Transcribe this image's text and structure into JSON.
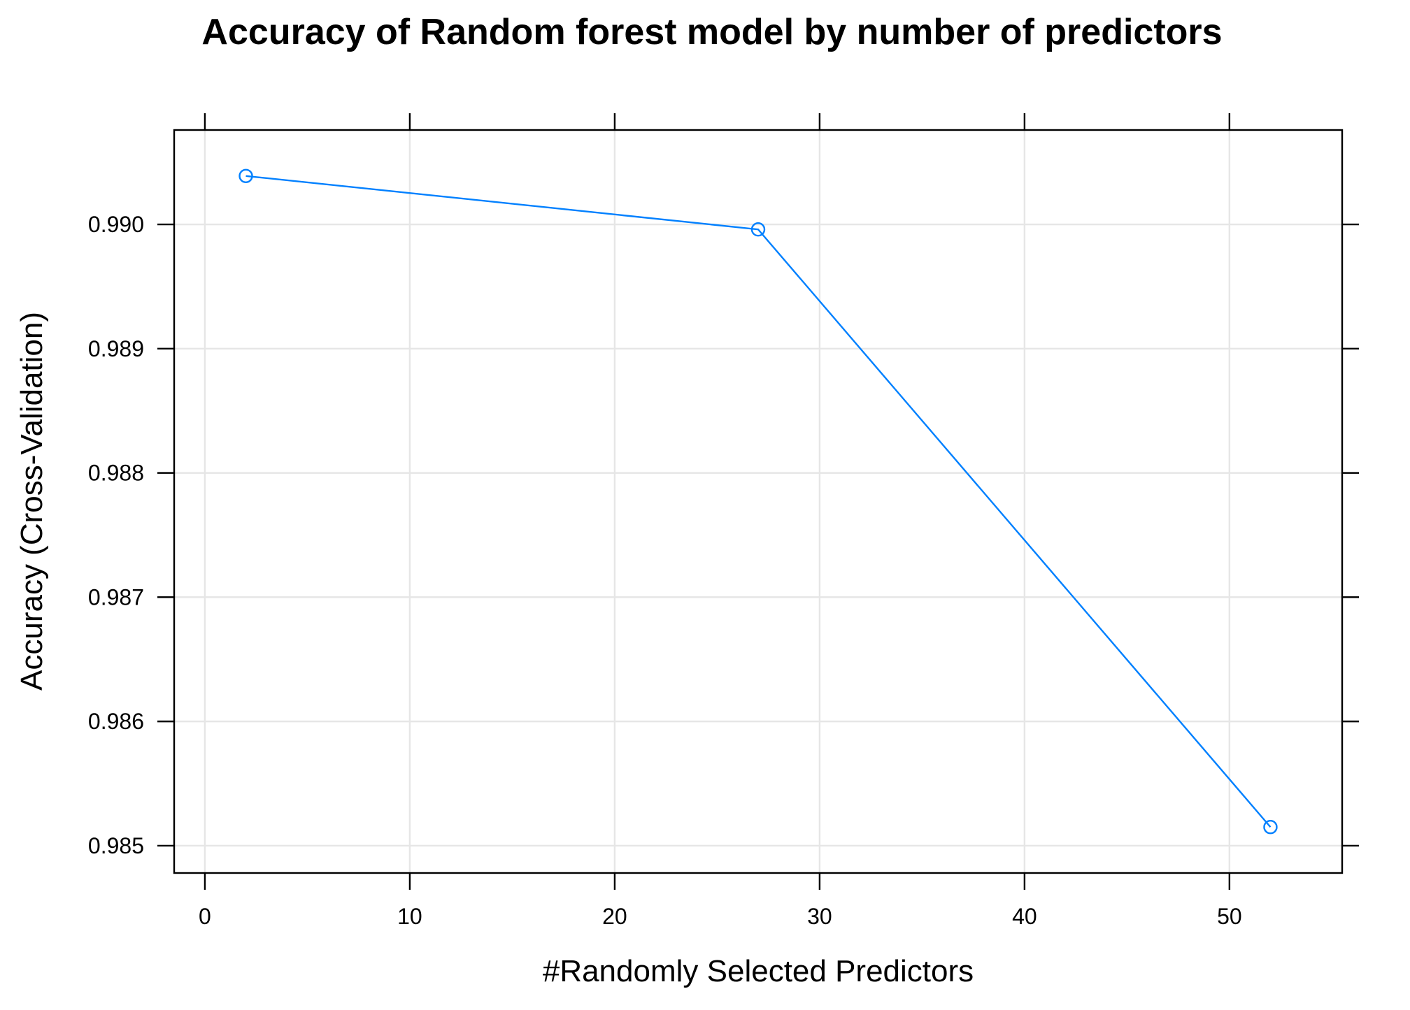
{
  "chart_data": {
    "type": "line",
    "title": "Accuracy of Random forest model by number of predictors",
    "xlabel": "#Randomly Selected Predictors",
    "ylabel": "Accuracy (Cross-Validation)",
    "xlim": [
      -1.5,
      55.5
    ],
    "ylim": [
      0.98478,
      0.99076
    ],
    "x_ticks": [
      0,
      10,
      20,
      30,
      40,
      50
    ],
    "x_tick_labels": [
      "0",
      "10",
      "20",
      "30",
      "40",
      "50"
    ],
    "y_ticks": [
      0.985,
      0.986,
      0.987,
      0.988,
      0.989,
      0.99
    ],
    "y_tick_labels": [
      "0.985",
      "0.986",
      "0.987",
      "0.988",
      "0.989",
      "0.990"
    ],
    "grid": true,
    "series": [
      {
        "x": [
          2,
          27,
          52
        ],
        "y": [
          0.99039,
          0.98996,
          0.98515
        ],
        "color": "#0080ff",
        "marker": "open-circle"
      }
    ]
  }
}
